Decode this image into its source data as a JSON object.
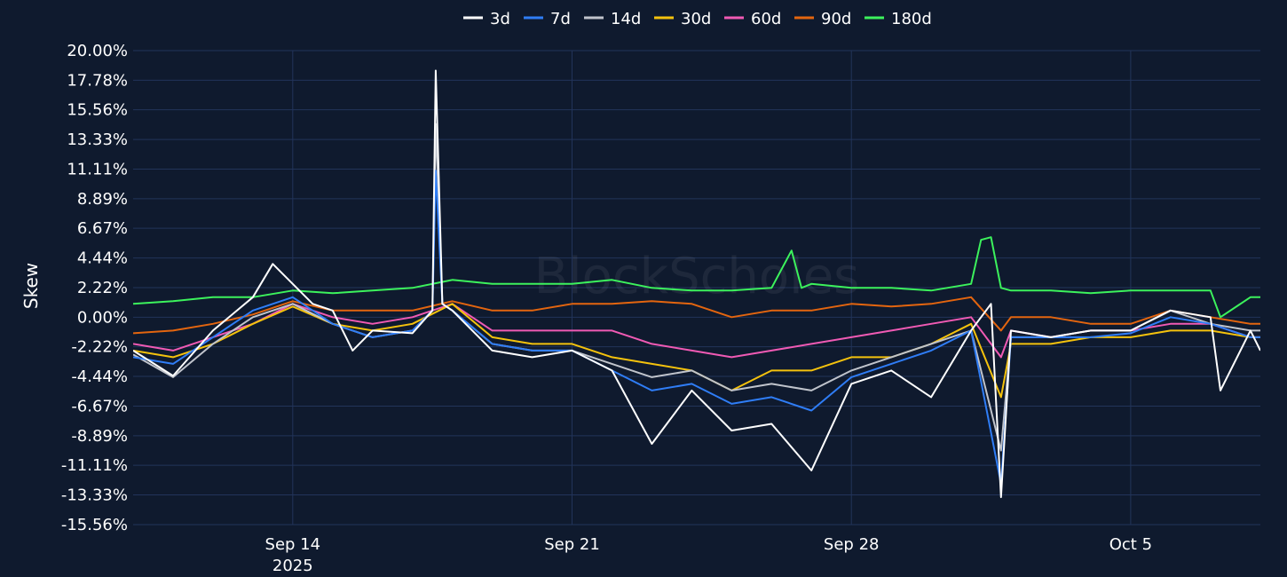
{
  "watermark": "BlockScholes",
  "chart_data": {
    "type": "line",
    "ylabel": "Skew",
    "xlabel": "",
    "ylim": [
      -15.56,
      20.0
    ],
    "y_ticks": [
      "20.00%",
      "17.78%",
      "15.56%",
      "13.33%",
      "11.11%",
      "8.89%",
      "6.67%",
      "4.44%",
      "2.22%",
      "0.00%",
      "-2.22%",
      "-4.44%",
      "-6.67%",
      "-8.89%",
      "-11.11%",
      "-13.33%",
      "-15.56%"
    ],
    "xlim": [
      "2025-09-10",
      "2025-10-08 06:00"
    ],
    "x_ticks": [
      {
        "date": "2025-09-14",
        "label": "Sep 14",
        "sublabel": "2025"
      },
      {
        "date": "2025-09-21",
        "label": "Sep 21",
        "sublabel": ""
      },
      {
        "date": "2025-09-28",
        "label": "Sep 28",
        "sublabel": ""
      },
      {
        "date": "2025-10-05",
        "label": "Oct 5",
        "sublabel": ""
      }
    ],
    "grid": true,
    "legend_position": "top-center",
    "series": [
      {
        "name": "3d",
        "color": "#ffffff",
        "x": [
          "2025-09-10",
          "2025-09-11",
          "2025-09-12",
          "2025-09-13",
          "2025-09-13 12:00",
          "2025-09-14",
          "2025-09-14 12:00",
          "2025-09-15",
          "2025-09-15 12:00",
          "2025-09-16",
          "2025-09-17",
          "2025-09-17 12:00",
          "2025-09-17 14:00",
          "2025-09-17 18:00",
          "2025-09-18",
          "2025-09-19",
          "2025-09-20",
          "2025-09-21",
          "2025-09-22",
          "2025-09-23",
          "2025-09-24",
          "2025-09-25",
          "2025-09-26",
          "2025-09-27",
          "2025-09-28",
          "2025-09-29",
          "2025-09-30",
          "2025-10-01",
          "2025-10-01 12:00",
          "2025-10-01 18:00",
          "2025-10-02",
          "2025-10-03",
          "2025-10-04",
          "2025-10-05",
          "2025-10-06",
          "2025-10-07",
          "2025-10-07 06:00",
          "2025-10-08",
          "2025-10-08 06:00"
        ],
        "y": [
          -2.5,
          -4.4,
          -1.0,
          1.5,
          4.0,
          2.5,
          1.0,
          0.5,
          -2.5,
          -1.0,
          -1.2,
          0.5,
          18.5,
          1.0,
          0.5,
          -2.5,
          -3.0,
          -2.5,
          -4.0,
          -9.5,
          -5.5,
          -8.5,
          -8.0,
          -11.5,
          -5.0,
          -4.0,
          -6.0,
          -1.0,
          1.0,
          -13.5,
          -1.0,
          -1.5,
          -1.0,
          -1.0,
          0.5,
          0.0,
          -5.5,
          -1.0,
          -2.5
        ]
      },
      {
        "name": "7d",
        "color": "#2f7df6",
        "x": [
          "2025-09-10",
          "2025-09-11",
          "2025-09-12",
          "2025-09-13",
          "2025-09-14",
          "2025-09-15",
          "2025-09-16",
          "2025-09-17",
          "2025-09-17 12:00",
          "2025-09-17 14:00",
          "2025-09-17 18:00",
          "2025-09-18",
          "2025-09-19",
          "2025-09-20",
          "2025-09-21",
          "2025-09-22",
          "2025-09-23",
          "2025-09-24",
          "2025-09-25",
          "2025-09-26",
          "2025-09-27",
          "2025-09-28",
          "2025-09-29",
          "2025-09-30",
          "2025-10-01",
          "2025-10-01 18:00",
          "2025-10-02",
          "2025-10-03",
          "2025-10-04",
          "2025-10-05",
          "2025-10-06",
          "2025-10-07",
          "2025-10-08",
          "2025-10-08 06:00"
        ],
        "y": [
          -3.0,
          -3.5,
          -1.5,
          0.5,
          1.5,
          -0.5,
          -1.5,
          -1.0,
          0.5,
          11.0,
          1.0,
          0.5,
          -2.0,
          -2.5,
          -2.5,
          -4.0,
          -5.5,
          -5.0,
          -6.5,
          -6.0,
          -7.0,
          -4.5,
          -3.5,
          -2.5,
          -1.0,
          -12.5,
          -1.5,
          -1.5,
          -1.5,
          -1.2,
          0.0,
          -0.5,
          -1.5,
          -1.5
        ]
      },
      {
        "name": "14d",
        "color": "#c0c4cc",
        "x": [
          "2025-09-10",
          "2025-09-11",
          "2025-09-12",
          "2025-09-13",
          "2025-09-14",
          "2025-09-15",
          "2025-09-16",
          "2025-09-17",
          "2025-09-17 12:00",
          "2025-09-17 14:00",
          "2025-09-17 18:00",
          "2025-09-18",
          "2025-09-19",
          "2025-09-20",
          "2025-09-21",
          "2025-09-22",
          "2025-09-23",
          "2025-09-24",
          "2025-09-25",
          "2025-09-26",
          "2025-09-27",
          "2025-09-28",
          "2025-09-29",
          "2025-09-30",
          "2025-10-01",
          "2025-10-01 18:00",
          "2025-10-02",
          "2025-10-03",
          "2025-10-04",
          "2025-10-05",
          "2025-10-06",
          "2025-10-07",
          "2025-10-08",
          "2025-10-08 06:00"
        ],
        "y": [
          -2.8,
          -4.5,
          -2.0,
          0.0,
          1.0,
          -0.5,
          -1.5,
          -1.0,
          0.5,
          14.5,
          1.0,
          0.5,
          -2.0,
          -2.5,
          -2.5,
          -3.5,
          -4.5,
          -4.0,
          -5.5,
          -5.0,
          -5.5,
          -4.0,
          -3.0,
          -2.0,
          -1.0,
          -10.0,
          -1.5,
          -1.5,
          -1.0,
          -1.0,
          0.5,
          -0.5,
          -1.0,
          -1.0
        ]
      },
      {
        "name": "30d",
        "color": "#f4c20d",
        "x": [
          "2025-09-10",
          "2025-09-11",
          "2025-09-12",
          "2025-09-13",
          "2025-09-14",
          "2025-09-15",
          "2025-09-16",
          "2025-09-17",
          "2025-09-18",
          "2025-09-19",
          "2025-09-20",
          "2025-09-21",
          "2025-09-22",
          "2025-09-23",
          "2025-09-24",
          "2025-09-25",
          "2025-09-26",
          "2025-09-27",
          "2025-09-28",
          "2025-09-29",
          "2025-09-30",
          "2025-10-01",
          "2025-10-01 18:00",
          "2025-10-02",
          "2025-10-03",
          "2025-10-04",
          "2025-10-05",
          "2025-10-06",
          "2025-10-07",
          "2025-10-08",
          "2025-10-08 06:00"
        ],
        "y": [
          -2.5,
          -3.0,
          -2.0,
          -0.5,
          0.8,
          -0.5,
          -1.0,
          -0.5,
          1.0,
          -1.5,
          -2.0,
          -2.0,
          -3.0,
          -3.5,
          -4.0,
          -5.5,
          -4.0,
          -4.0,
          -3.0,
          -3.0,
          -2.0,
          -0.5,
          -6.0,
          -2.0,
          -2.0,
          -1.5,
          -1.5,
          -1.0,
          -1.0,
          -1.5,
          -1.5
        ]
      },
      {
        "name": "60d",
        "color": "#f05ab4",
        "x": [
          "2025-09-10",
          "2025-09-11",
          "2025-09-12",
          "2025-09-13",
          "2025-09-14",
          "2025-09-15",
          "2025-09-16",
          "2025-09-17",
          "2025-09-18",
          "2025-09-19",
          "2025-09-20",
          "2025-09-21",
          "2025-09-22",
          "2025-09-23",
          "2025-09-24",
          "2025-09-25",
          "2025-09-26",
          "2025-09-27",
          "2025-09-28",
          "2025-09-29",
          "2025-09-30",
          "2025-10-01",
          "2025-10-01 18:00",
          "2025-10-02",
          "2025-10-03",
          "2025-10-04",
          "2025-10-05",
          "2025-10-06",
          "2025-10-07",
          "2025-10-08",
          "2025-10-08 06:00"
        ],
        "y": [
          -2.0,
          -2.5,
          -1.5,
          -0.5,
          1.0,
          0.0,
          -0.5,
          0.0,
          1.0,
          -1.0,
          -1.0,
          -1.0,
          -1.0,
          -2.0,
          -2.5,
          -3.0,
          -2.5,
          -2.0,
          -1.5,
          -1.0,
          -0.5,
          0.0,
          -3.0,
          -1.0,
          -1.5,
          -1.0,
          -1.0,
          -0.5,
          -0.5,
          -1.5,
          -1.5
        ]
      },
      {
        "name": "90d",
        "color": "#e3650f",
        "x": [
          "2025-09-10",
          "2025-09-11",
          "2025-09-12",
          "2025-09-13",
          "2025-09-14",
          "2025-09-15",
          "2025-09-16",
          "2025-09-17",
          "2025-09-18",
          "2025-09-19",
          "2025-09-20",
          "2025-09-21",
          "2025-09-22",
          "2025-09-23",
          "2025-09-24",
          "2025-09-25",
          "2025-09-26",
          "2025-09-27",
          "2025-09-28",
          "2025-09-29",
          "2025-09-30",
          "2025-10-01",
          "2025-10-01 18:00",
          "2025-10-02",
          "2025-10-03",
          "2025-10-04",
          "2025-10-05",
          "2025-10-06",
          "2025-10-07",
          "2025-10-08",
          "2025-10-08 06:00"
        ],
        "y": [
          -1.2,
          -1.0,
          -0.5,
          0.2,
          1.2,
          0.5,
          0.5,
          0.5,
          1.2,
          0.5,
          0.5,
          1.0,
          1.0,
          1.2,
          1.0,
          0.0,
          0.5,
          0.5,
          1.0,
          0.8,
          1.0,
          1.5,
          -1.0,
          0.0,
          0.0,
          -0.5,
          -0.5,
          0.5,
          0.0,
          -0.5,
          -0.5
        ]
      },
      {
        "name": "180d",
        "color": "#3cf25c",
        "x": [
          "2025-09-10",
          "2025-09-11",
          "2025-09-12",
          "2025-09-13",
          "2025-09-14",
          "2025-09-15",
          "2025-09-16",
          "2025-09-17",
          "2025-09-18",
          "2025-09-19",
          "2025-09-20",
          "2025-09-21",
          "2025-09-22",
          "2025-09-23",
          "2025-09-24",
          "2025-09-25",
          "2025-09-26",
          "2025-09-26 12:00",
          "2025-09-26 18:00",
          "2025-09-27",
          "2025-09-28",
          "2025-09-29",
          "2025-09-30",
          "2025-10-01",
          "2025-10-01 06:00",
          "2025-10-01 12:00",
          "2025-10-01 18:00",
          "2025-10-02",
          "2025-10-03",
          "2025-10-04",
          "2025-10-05",
          "2025-10-06",
          "2025-10-07",
          "2025-10-07 06:00",
          "2025-10-08",
          "2025-10-08 06:00"
        ],
        "y": [
          1.0,
          1.2,
          1.5,
          1.5,
          2.0,
          1.8,
          2.0,
          2.2,
          2.8,
          2.5,
          2.5,
          2.5,
          2.8,
          2.2,
          2.0,
          2.0,
          2.2,
          5.0,
          2.2,
          2.5,
          2.2,
          2.2,
          2.0,
          2.5,
          5.8,
          6.0,
          2.2,
          2.0,
          2.0,
          1.8,
          2.0,
          2.0,
          2.0,
          0.0,
          1.5,
          1.5
        ]
      }
    ]
  }
}
